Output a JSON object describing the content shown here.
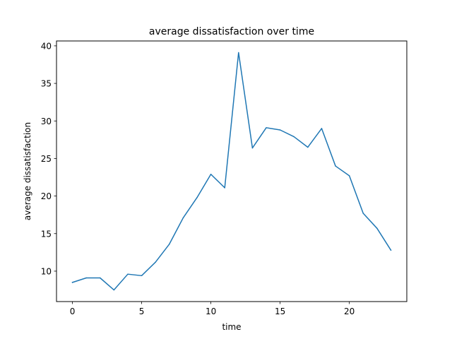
{
  "chart_data": {
    "type": "line",
    "title": "average dissatisfaction over time",
    "xlabel": "time",
    "ylabel": "average dissatisfaction",
    "xlim": [
      -1.15,
      24.15
    ],
    "ylim": [
      5.95,
      40.65
    ],
    "xticks": [
      0,
      5,
      10,
      15,
      20
    ],
    "yticks": [
      10,
      15,
      20,
      25,
      30,
      35,
      40
    ],
    "grid": false,
    "legend": "none",
    "series": [
      {
        "color": "#1f77b4",
        "x": [
          0,
          1,
          2,
          3,
          4,
          5,
          6,
          7,
          8,
          9,
          10,
          11,
          12,
          13,
          14,
          15,
          16,
          17,
          18,
          19,
          20,
          21,
          22,
          23
        ],
        "y": [
          8.5,
          9.1,
          9.1,
          7.5,
          9.6,
          9.4,
          11.2,
          13.6,
          17.1,
          19.8,
          22.9,
          21.1,
          39.1,
          26.4,
          29.1,
          28.8,
          27.9,
          26.5,
          29.0,
          24.0,
          22.7,
          17.7,
          15.7,
          12.8
        ]
      }
    ]
  }
}
